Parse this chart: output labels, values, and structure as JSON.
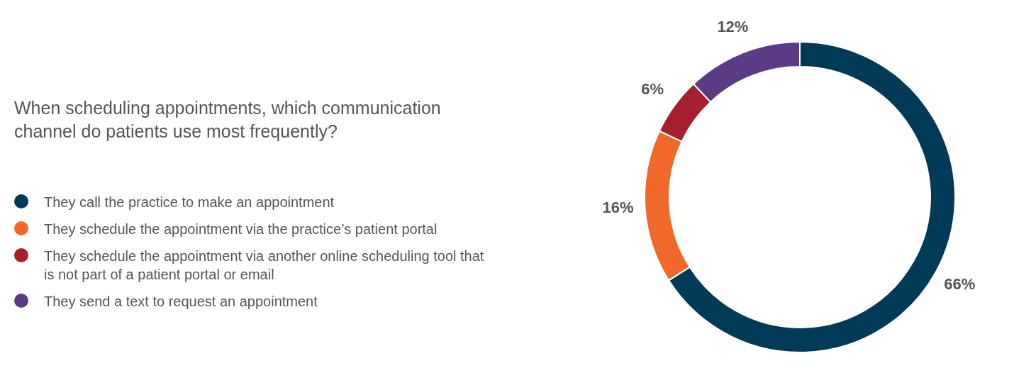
{
  "chart_data": {
    "type": "donut",
    "title": "When scheduling appointments, which communication channel do patients use most frequently?",
    "categories": [
      "They call the practice to make an appointment",
      "They schedule the appointment via the practice’s patient portal",
      "They schedule the appointment via another online scheduling tool that is not part of a patient portal or email",
      "They send a text to request an appointment"
    ],
    "values": [
      66,
      16,
      6,
      12
    ],
    "value_labels": [
      "66%",
      "16%",
      "6%",
      "12%"
    ],
    "colors": [
      "#013a57",
      "#f0692a",
      "#a51f2e",
      "#5a3c86"
    ],
    "legend": "left"
  }
}
